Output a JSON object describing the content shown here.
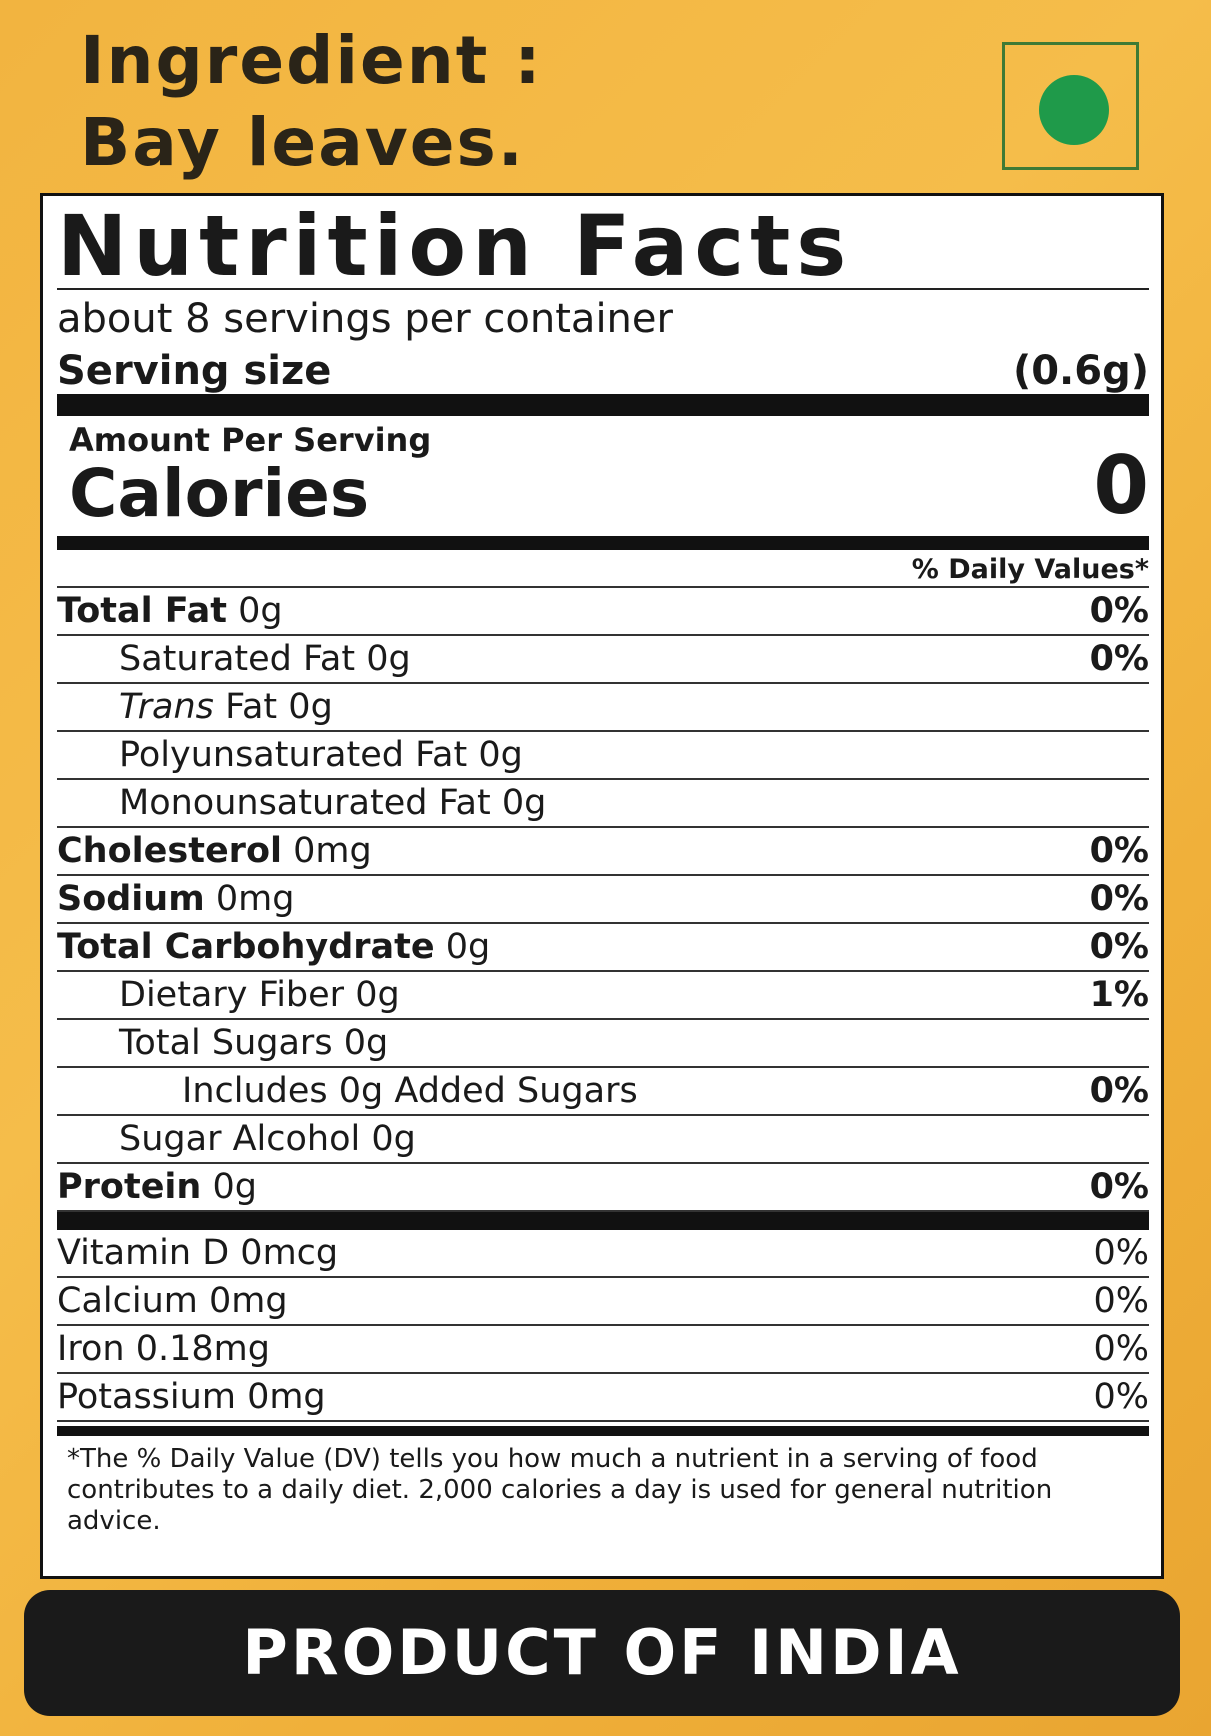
{
  "ingredient": {
    "line1": "Ingredient :",
    "line2": "Bay leaves."
  },
  "label": {
    "title": "Nutrition Facts",
    "servings": "about 8 servings per container",
    "serving_size_label": "Serving size",
    "serving_size_value": "(0.6g)",
    "amount_per_serving": "Amount Per Serving",
    "calories_label": "Calories",
    "calories_value": "0",
    "dv_header": "% Daily Values*",
    "rows": [
      {
        "name": "Total Fat",
        "amount": "0g",
        "dv": "0%",
        "bold": true,
        "indent": 0
      },
      {
        "name": "Saturated Fat",
        "amount": "0g",
        "dv": "0%",
        "bold": false,
        "indent": 1
      },
      {
        "italic": "Trans",
        "name": "Fat",
        "amount": "0g",
        "bold": false,
        "indent": 1
      },
      {
        "name": "Polyunsaturated Fat",
        "amount": "0g",
        "bold": false,
        "indent": 1
      },
      {
        "name": "Monounsaturated Fat",
        "amount": "0g",
        "bold": false,
        "indent": 1
      },
      {
        "name": "Cholesterol",
        "amount": "0mg",
        "dv": "0%",
        "bold": true,
        "indent": 0
      },
      {
        "name": "Sodium",
        "amount": "0mg",
        "dv": "0%",
        "bold": true,
        "indent": 0
      },
      {
        "name": "Total Carbohydrate",
        "amount": "0g",
        "dv": "0%",
        "bold": true,
        "indent": 0
      },
      {
        "name": "Dietary Fiber",
        "amount": "0g",
        "dv": "1%",
        "bold": false,
        "indent": 1
      },
      {
        "name": "Total Sugars",
        "amount": "0g",
        "bold": false,
        "indent": 1
      },
      {
        "name": "Includes 0g Added Sugars",
        "dv": "0%",
        "bold": false,
        "indent": 2
      },
      {
        "name": "Sugar Alcohol",
        "amount": "0g",
        "bold": false,
        "indent": 1
      },
      {
        "name": "Protein",
        "amount": "0g",
        "dv": "0%",
        "bold": true,
        "indent": 0
      }
    ],
    "vitamins": [
      {
        "name": "Vitamin D",
        "amount": "0mcg",
        "dv": "0%"
      },
      {
        "name": "Calcium",
        "amount": "0mg",
        "dv": "0%"
      },
      {
        "name": "Iron",
        "amount": "0.18mg",
        "dv": "0%"
      },
      {
        "name": "Potassium",
        "amount": "0mg",
        "dv": "0%"
      }
    ],
    "footnote": "*The % Daily Value (DV) tells you how much a nutrient in a serving of food contributes to a daily diet. 2,000 calories a day is used for general nutrition advice."
  },
  "origin": "PRODUCT OF INDIA"
}
